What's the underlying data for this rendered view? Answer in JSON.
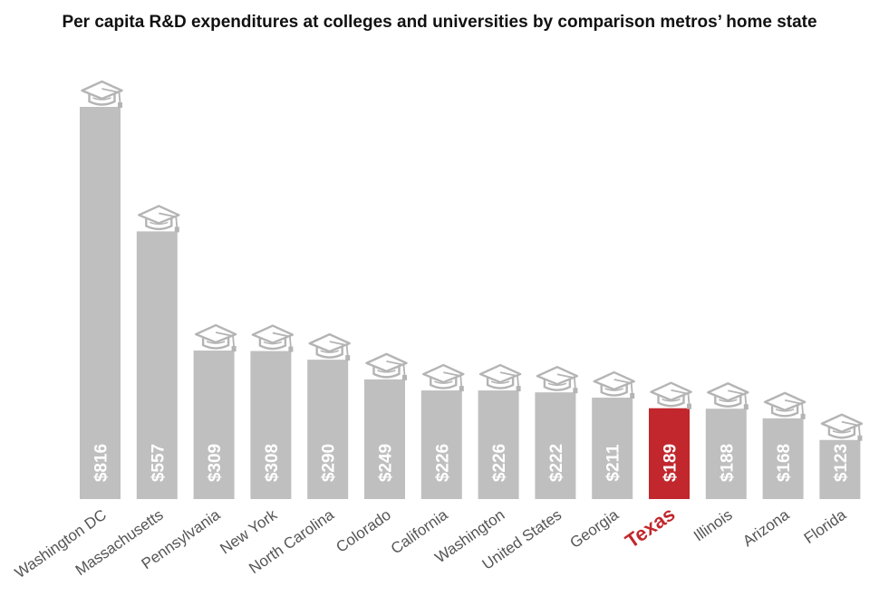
{
  "chart_data": {
    "type": "bar",
    "title": "Per capita R&D expenditures at colleges and universities by comparison metros’ home state",
    "categories": [
      "Washington DC",
      "Massachusetts",
      "Pennsylvania",
      "New York",
      "North Carolina",
      "Colorado",
      "California",
      "Washington",
      "United States",
      "Georgia",
      "Texas",
      "Illinois",
      "Arizona",
      "Florida"
    ],
    "values": [
      816,
      557,
      309,
      308,
      290,
      249,
      226,
      226,
      222,
      211,
      189,
      188,
      168,
      123
    ],
    "value_labels": [
      "$816",
      "$557",
      "$309",
      "$308",
      "$290",
      "$249",
      "$226",
      "$226",
      "$222",
      "$211",
      "$189",
      "$188",
      "$168",
      "$123"
    ],
    "highlight": "Texas",
    "ylim": [
      0,
      816
    ],
    "grid": false,
    "legend": "none",
    "colors": {
      "bar": "#c0bfbf",
      "highlight": "#c1272d",
      "icon": "#b5b4b4",
      "label": "#555555"
    },
    "icon": "graduation-cap-icon"
  }
}
